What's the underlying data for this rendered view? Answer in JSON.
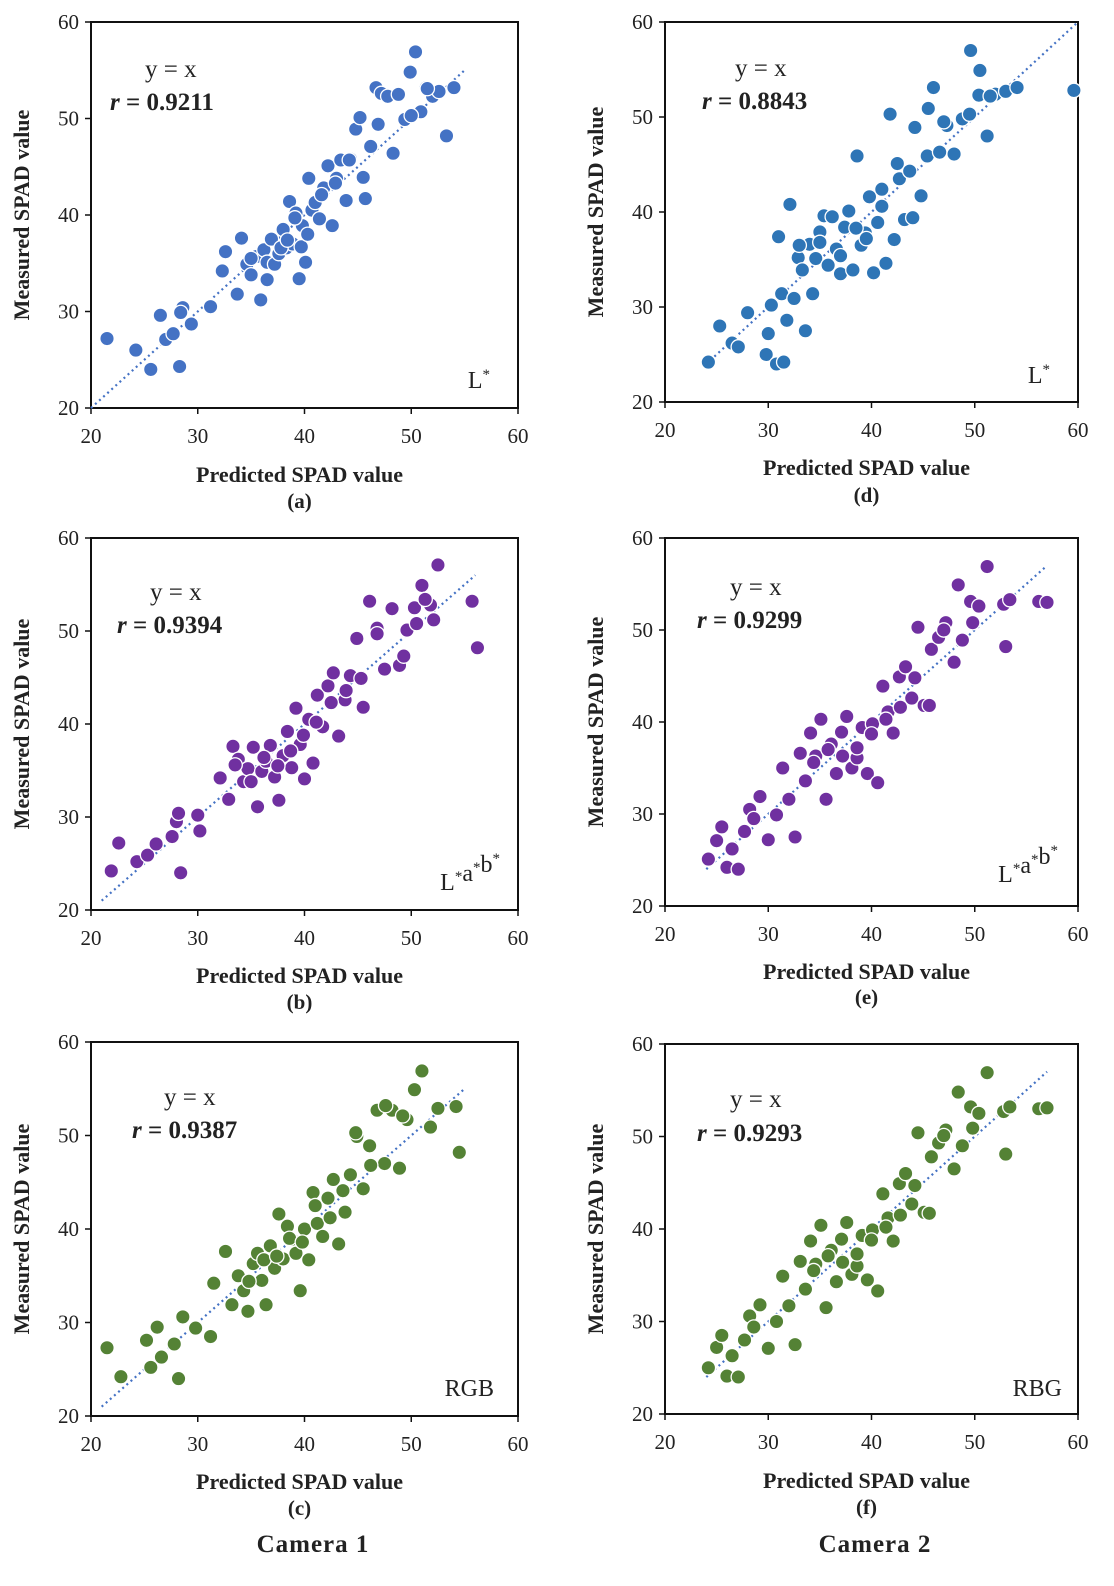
{
  "chart_data": [
    {
      "id": "a",
      "type": "scatter",
      "color": "#4472c4",
      "stroke": "#ffffff",
      "xlabel": "Predicted SPAD value",
      "ylabel": "Measured SPAD value",
      "xlim": [
        20,
        60
      ],
      "ylim": [
        20,
        60
      ],
      "xticks": [
        20,
        30,
        40,
        50,
        60
      ],
      "yticks": [
        20,
        30,
        40,
        50,
        60
      ],
      "panel_label": "(a)",
      "equation": "y = x",
      "r_symbol": "r",
      "r_value": "= 0.9211",
      "corner_label": "L*",
      "trendline": [
        [
          20,
          20
        ],
        [
          55,
          55
        ]
      ],
      "x": [
        21.5,
        24.2,
        25.6,
        27,
        26.5,
        27.7,
        28.3,
        28.6,
        29.4,
        28.4,
        31.2,
        32.3,
        32.6,
        33.7,
        34.1,
        34.6,
        35,
        35.5,
        35.9,
        36.2,
        36.5,
        36.9,
        37.2,
        37.6,
        38,
        38.3,
        38.6,
        38.9,
        39.2,
        39.5,
        39.8,
        40.1,
        40.4,
        40.7,
        41,
        41.4,
        41.8,
        42.2,
        42.6,
        43,
        43.4,
        43.9,
        44.3,
        44.8,
        45.2,
        45.7,
        46.2,
        46.7,
        47.2,
        47.8,
        48.3,
        48.8,
        49.4,
        49.9,
        50.4,
        50.9,
        51.4,
        52,
        52.6,
        53.3,
        54,
        35,
        36.5,
        37.8,
        38.4,
        39.1,
        39.7,
        40.3,
        41.6,
        42.9,
        44.2,
        45.5,
        46.9,
        50,
        51.5
      ],
      "y": [
        27.2,
        26,
        24,
        27.1,
        29.6,
        27.7,
        24.3,
        30.4,
        28.7,
        29.9,
        30.5,
        34.2,
        36.2,
        31.8,
        37.6,
        34.9,
        33.8,
        35.7,
        31.2,
        36.4,
        35.1,
        37.5,
        34.9,
        36,
        38.5,
        36.6,
        41.4,
        37,
        40.2,
        33.4,
        38.9,
        35.1,
        43.8,
        40.5,
        41.3,
        39.6,
        42.8,
        45.1,
        38.9,
        43.8,
        45.7,
        41.5,
        45.8,
        48.9,
        50.1,
        41.7,
        47.1,
        53.2,
        52.6,
        52.3,
        46.4,
        52.5,
        49.9,
        54.8,
        56.9,
        50.7,
        53.2,
        52.3,
        52.8,
        48.2,
        53.2,
        35.5,
        33.3,
        36.6,
        37.4,
        39.7,
        36.7,
        38,
        42.1,
        43.3,
        45.7,
        43.9,
        49.4,
        50.3,
        53.1
      ]
    },
    {
      "id": "b",
      "type": "scatter",
      "color": "#7030a0",
      "stroke": "#ffffff",
      "xlabel": "Predicted SPAD value",
      "ylabel": "Measured SPAD value",
      "xlim": [
        20,
        60
      ],
      "ylim": [
        20,
        60
      ],
      "xticks": [
        20,
        30,
        40,
        50,
        60
      ],
      "yticks": [
        20,
        30,
        40,
        50,
        60
      ],
      "panel_label": "(b)",
      "equation": "y = x",
      "r_symbol": "r",
      "r_value": "= 0.9394",
      "corner_label": "L*a*b*",
      "trendline": [
        [
          21,
          21
        ],
        [
          56,
          56
        ]
      ],
      "x": [
        21.9,
        22.6,
        24.3,
        25.3,
        26.1,
        27.6,
        28,
        28.2,
        28.4,
        30,
        30.2,
        32.1,
        32.9,
        33.3,
        33.8,
        34.3,
        34.7,
        35.2,
        35.6,
        36,
        36.4,
        36.8,
        37.2,
        37.6,
        38,
        38.4,
        38.8,
        39.2,
        39.6,
        40,
        40.4,
        40.8,
        41.2,
        41.7,
        42.2,
        42.7,
        43.2,
        43.8,
        44.3,
        44.9,
        45.5,
        46.1,
        46.8,
        47.5,
        48.2,
        48.9,
        49.6,
        50.3,
        51,
        51.8,
        52.5,
        55.7,
        56.2,
        33.5,
        35,
        36.2,
        37.5,
        38.7,
        39.9,
        41.1,
        42.5,
        43.9,
        45.3,
        46.8,
        49.3,
        50.5,
        51.3,
        52.1
      ],
      "y": [
        24.2,
        27.2,
        25.2,
        25.9,
        27.1,
        27.9,
        29.5,
        30.4,
        24,
        30.2,
        28.5,
        34.2,
        31.9,
        37.6,
        36.2,
        33.8,
        35.2,
        37.5,
        31.1,
        34.9,
        36,
        37.7,
        34.3,
        31.8,
        36.6,
        39.2,
        35.3,
        41.7,
        37.8,
        34.1,
        40.5,
        35.8,
        43.1,
        39.7,
        44.1,
        45.5,
        38.7,
        42.6,
        45.2,
        49.2,
        41.8,
        53.2,
        50.3,
        45.9,
        52.4,
        46.3,
        50.1,
        52.5,
        54.9,
        52.8,
        57.1,
        53.2,
        48.2,
        35.6,
        33.8,
        36.4,
        35.5,
        37.1,
        38.8,
        40.2,
        42.3,
        43.6,
        44.9,
        49.7,
        47.3,
        50.8,
        53.4,
        51.2
      ]
    },
    {
      "id": "c",
      "type": "scatter",
      "color": "#548235",
      "stroke": "#ffffff",
      "xlabel": "Predicted SPAD value",
      "ylabel": "Measured SPAD value",
      "xlim": [
        20,
        60
      ],
      "ylim": [
        20,
        60
      ],
      "xticks": [
        20,
        30,
        40,
        50,
        60
      ],
      "yticks": [
        20,
        30,
        40,
        50,
        60
      ],
      "panel_label": "(c)",
      "equation": "y = x",
      "r_symbol": "r",
      "r_value": "= 0.9387",
      "corner_label": "RGB",
      "trendline": [
        [
          21,
          21
        ],
        [
          55,
          55
        ]
      ],
      "x": [
        21.5,
        22.8,
        25.2,
        25.6,
        26.2,
        26.6,
        27.8,
        28.2,
        28.6,
        29.8,
        31.2,
        31.5,
        32.6,
        33.2,
        33.8,
        34.3,
        34.7,
        35.2,
        35.6,
        36,
        36.4,
        36.8,
        37.2,
        37.6,
        38,
        38.4,
        38.8,
        39.2,
        39.6,
        40,
        40.4,
        40.8,
        41.2,
        41.7,
        42.2,
        42.7,
        43.2,
        43.8,
        44.3,
        44.9,
        45.5,
        46.1,
        46.8,
        47.5,
        48.2,
        48.9,
        49.6,
        50.3,
        51,
        51.8,
        52.5,
        54.2,
        54.5,
        34.8,
        36.2,
        37.4,
        38.6,
        39.8,
        41,
        42.4,
        43.6,
        44.8,
        46.2,
        47.6,
        49.2
      ],
      "y": [
        27.3,
        24.2,
        28.1,
        25.2,
        29.5,
        26.3,
        27.7,
        24,
        30.6,
        29.4,
        28.5,
        34.2,
        37.6,
        31.9,
        35,
        33.4,
        31.2,
        36.3,
        37.4,
        34.5,
        31.9,
        38.2,
        35.8,
        41.6,
        36.8,
        40.3,
        38.9,
        37.4,
        33.4,
        40,
        36.7,
        43.9,
        40.6,
        39.2,
        43.3,
        45.3,
        38.4,
        41.8,
        45.8,
        49.9,
        44.3,
        48.9,
        52.7,
        47,
        52.7,
        46.5,
        51.7,
        54.9,
        56.9,
        50.9,
        52.9,
        53.1,
        48.2,
        34.4,
        36.7,
        37.1,
        39,
        38.6,
        42.5,
        41.2,
        44.1,
        50.3,
        46.8,
        53.2,
        52.1
      ]
    },
    {
      "id": "d",
      "type": "scatter",
      "color": "#2e75b6",
      "stroke": "#ffffff",
      "xlabel": "Predicted SPAD value",
      "ylabel": "Measured SPAD value",
      "xlim": [
        20,
        60
      ],
      "ylim": [
        20,
        60
      ],
      "xticks": [
        20,
        30,
        40,
        50,
        60
      ],
      "yticks": [
        20,
        30,
        40,
        50,
        60
      ],
      "panel_label": "(d)",
      "equation": "y = x",
      "r_symbol": "r",
      "r_value": "= 0.8843",
      "corner_label": "L*",
      "trendline": [
        [
          24,
          24
        ],
        [
          60,
          60
        ]
      ],
      "x": [
        24.2,
        25.3,
        26.5,
        27.1,
        28,
        29.8,
        30,
        30.3,
        30.8,
        31.3,
        31.5,
        31.8,
        32.1,
        32.5,
        32.9,
        33.3,
        33.6,
        34,
        34.3,
        34.6,
        35,
        35.4,
        35.8,
        36.2,
        36.6,
        37,
        37.4,
        37.8,
        38.2,
        38.6,
        39,
        39.4,
        39.8,
        40.2,
        40.6,
        41,
        41.4,
        41.8,
        42.2,
        42.7,
        43.2,
        43.7,
        44.2,
        44.8,
        45.4,
        46,
        46.6,
        47.3,
        48,
        48.8,
        49.6,
        50.4,
        51.2,
        52,
        53,
        54.1,
        59.6,
        31,
        33,
        35,
        37,
        38.5,
        39.5,
        41,
        42.5,
        44,
        45.5,
        47,
        49.5,
        50.5,
        51.5
      ],
      "y": [
        24.2,
        28,
        26.2,
        25.8,
        29.4,
        25,
        27.2,
        30.2,
        24,
        31.4,
        24.2,
        28.6,
        40.8,
        30.9,
        35.2,
        33.9,
        27.5,
        36.6,
        31.4,
        35.1,
        37.9,
        39.6,
        34.4,
        39.5,
        36.1,
        33.5,
        38.4,
        40.1,
        33.9,
        45.9,
        36.5,
        37.8,
        41.6,
        33.6,
        38.9,
        42.4,
        34.6,
        50.3,
        37.1,
        43.5,
        39.2,
        44.3,
        48.9,
        41.7,
        45.9,
        53.1,
        46.3,
        49.1,
        46.1,
        49.8,
        57,
        52.3,
        48,
        52.4,
        52.7,
        53.1,
        52.8,
        37.4,
        36.5,
        36.8,
        35.4,
        38.3,
        37.2,
        40.6,
        45.1,
        39.4,
        50.9,
        49.5,
        50.3,
        54.9,
        52.2
      ]
    },
    {
      "id": "e",
      "type": "scatter",
      "color": "#7030a0",
      "stroke": "#ffffff",
      "xlabel": "Predicted SPAD value",
      "ylabel": "Measured SPAD value",
      "xlim": [
        20,
        60
      ],
      "ylim": [
        20,
        60
      ],
      "xticks": [
        20,
        30,
        40,
        50,
        60
      ],
      "yticks": [
        20,
        30,
        40,
        50,
        60
      ],
      "panel_label": "(e)",
      "equation": "y = x",
      "r_symbol": "r",
      "r_value": "= 0.9299",
      "corner_label": "L*a*b*",
      "trendline": [
        [
          24,
          24
        ],
        [
          57,
          57
        ]
      ],
      "x": [
        24.2,
        25,
        25.5,
        26,
        26.5,
        27.1,
        27.7,
        28.2,
        28.6,
        29.2,
        30,
        30.8,
        31.4,
        32,
        32.6,
        33.1,
        33.6,
        34.1,
        34.6,
        35.1,
        35.6,
        36.1,
        36.6,
        37.1,
        37.6,
        38.1,
        38.6,
        39.1,
        39.6,
        40.1,
        40.6,
        41.1,
        41.6,
        42.1,
        42.7,
        43.3,
        43.9,
        44.5,
        45.1,
        45.8,
        46.5,
        47.2,
        48,
        48.8,
        49.6,
        50.4,
        51.2,
        52.8,
        53.4,
        56.2,
        57,
        34.4,
        35.8,
        37.2,
        38.6,
        40,
        41.4,
        42.8,
        44.2,
        45.6,
        47,
        48.4,
        49.8,
        53
      ],
      "y": [
        25.1,
        27.1,
        28.6,
        24.2,
        26.2,
        24,
        28.1,
        30.5,
        29.5,
        31.9,
        27.2,
        29.9,
        35,
        31.6,
        27.5,
        36.6,
        33.6,
        38.8,
        36.3,
        40.3,
        31.6,
        37.6,
        34.4,
        38.9,
        40.6,
        35,
        36.1,
        39.4,
        34.4,
        39.8,
        33.4,
        43.9,
        41.1,
        38.8,
        44.9,
        46,
        42.6,
        50.3,
        41.8,
        47.9,
        49.2,
        50.8,
        46.5,
        48.9,
        53.1,
        52.6,
        56.9,
        52.8,
        53.3,
        53.1,
        53,
        35.6,
        37,
        36.3,
        37.2,
        38.7,
        40.3,
        41.6,
        44.8,
        41.8,
        50,
        54.9,
        50.8,
        48.2
      ]
    },
    {
      "id": "f",
      "type": "scatter",
      "color": "#548235",
      "stroke": "#ffffff",
      "xlabel": "Predicted SPAD value",
      "ylabel": "Measured SPAD value",
      "xlim": [
        20,
        60
      ],
      "ylim": [
        20,
        60
      ],
      "xticks": [
        20,
        30,
        40,
        50,
        60
      ],
      "yticks": [
        20,
        30,
        40,
        50,
        60
      ],
      "panel_label": "(f)",
      "equation": "y = x",
      "r_symbol": "r",
      "r_value": "= 0.9293",
      "corner_label": "RBG",
      "trendline": [
        [
          24,
          24
        ],
        [
          57,
          57
        ]
      ],
      "x": [
        24.2,
        25,
        25.5,
        26,
        26.5,
        27.1,
        27.7,
        28.2,
        28.6,
        29.2,
        30,
        30.8,
        31.4,
        32,
        32.6,
        33.1,
        33.6,
        34.1,
        34.6,
        35.1,
        35.6,
        36.1,
        36.6,
        37.1,
        37.6,
        38.1,
        38.6,
        39.1,
        39.6,
        40.1,
        40.6,
        41.1,
        41.6,
        42.1,
        42.7,
        43.3,
        43.9,
        44.5,
        45.1,
        45.8,
        46.5,
        47.2,
        48,
        48.8,
        49.6,
        50.4,
        51.2,
        52.8,
        53.4,
        56.2,
        57,
        34.4,
        35.8,
        37.2,
        38.6,
        40,
        41.4,
        42.8,
        44.2,
        45.6,
        47,
        48.4,
        49.8,
        53
      ],
      "y": [
        25,
        27.2,
        28.5,
        24.1,
        26.3,
        24,
        28,
        30.6,
        29.4,
        31.8,
        27.1,
        30,
        34.9,
        31.7,
        27.5,
        36.5,
        33.5,
        38.7,
        36.2,
        40.4,
        31.5,
        37.7,
        34.3,
        38.9,
        40.7,
        35.1,
        36,
        39.3,
        34.5,
        39.9,
        33.3,
        43.8,
        41.2,
        38.7,
        44.9,
        46,
        42.7,
        50.4,
        41.8,
        47.8,
        49.3,
        50.7,
        46.5,
        49,
        53.2,
        52.5,
        56.9,
        52.7,
        53.2,
        53,
        53.1,
        35.5,
        37.1,
        36.4,
        37.3,
        38.8,
        40.2,
        41.5,
        44.7,
        41.7,
        50.1,
        54.8,
        50.9,
        48.1
      ]
    }
  ],
  "camera_labels": [
    "Camera 1",
    "Camera 2"
  ]
}
